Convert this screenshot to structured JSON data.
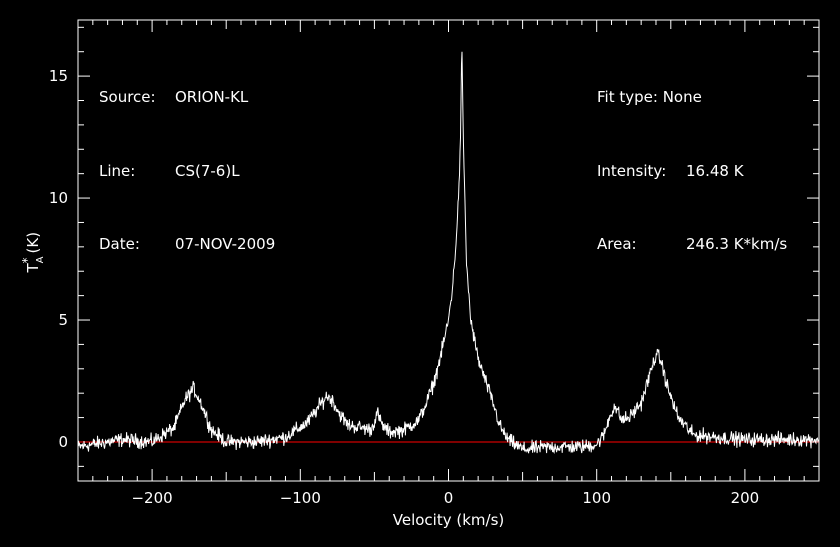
{
  "header": {
    "left": [
      {
        "label": "Source:",
        "value": "ORION-KL"
      },
      {
        "label": "Line:",
        "value": "CS(7-6)L"
      },
      {
        "label": "Date:",
        "value": "07-NOV-2009"
      }
    ],
    "right": [
      {
        "label": "Fit type:",
        "value": "None"
      },
      {
        "label": "Intensity:",
        "value": "16.48 K"
      },
      {
        "label": "Area:",
        "value": "246.3 K*km/s"
      }
    ]
  },
  "colors": {
    "background": "#000000",
    "spectrum": "#ffffff",
    "baseline": "#ff0000",
    "axes": "#ffffff"
  },
  "chart_data": {
    "type": "line",
    "title": "",
    "xlabel": "Velocity (km/s)",
    "ylabel": "T*A (K)",
    "ylabel_main": "T",
    "ylabel_sup": "*",
    "ylabel_sub": "A",
    "ylabel_unit": "(K)",
    "xlim": [
      -250,
      250
    ],
    "ylim": [
      -1.6,
      17.3
    ],
    "xticks": [
      -200,
      -100,
      0,
      100,
      200
    ],
    "yticks": [
      0,
      5,
      10,
      15
    ],
    "baseline": 0,
    "noise_rms": 0.18,
    "grid": false,
    "legend": "none",
    "series": [
      {
        "values_note_free": true,
        "x": [
          -250,
          -220,
          -200,
          -185,
          -178,
          -172,
          -167,
          -160,
          -150,
          -130,
          -110,
          -95,
          -88,
          -82,
          -78,
          -74,
          -68,
          -60,
          -52,
          -48,
          -45,
          -40,
          -30,
          -20,
          -15,
          -10,
          -5,
          0,
          3,
          6,
          8,
          9,
          10,
          12,
          15,
          20,
          25,
          30,
          35,
          40,
          50,
          70,
          90,
          100,
          105,
          108,
          112,
          117,
          122,
          130,
          136,
          140,
          143,
          148,
          155,
          165,
          180,
          200,
          220,
          250
        ],
        "y": [
          -0.2,
          0.1,
          0.0,
          0.6,
          1.7,
          2.2,
          1.6,
          0.5,
          0.0,
          0.0,
          0.2,
          0.8,
          1.4,
          1.9,
          1.7,
          1.2,
          0.7,
          0.6,
          0.5,
          1.2,
          0.7,
          0.4,
          0.5,
          0.9,
          1.6,
          2.4,
          3.6,
          5.0,
          6.5,
          9.0,
          12.0,
          16.48,
          12.5,
          7.5,
          5.0,
          3.4,
          2.5,
          1.6,
          0.6,
          0.1,
          -0.3,
          -0.2,
          -0.2,
          -0.1,
          0.3,
          0.9,
          1.5,
          0.9,
          1.0,
          1.6,
          2.8,
          3.6,
          3.4,
          2.2,
          1.0,
          0.3,
          0.2,
          0.1,
          0.1,
          0.1
        ]
      }
    ]
  }
}
